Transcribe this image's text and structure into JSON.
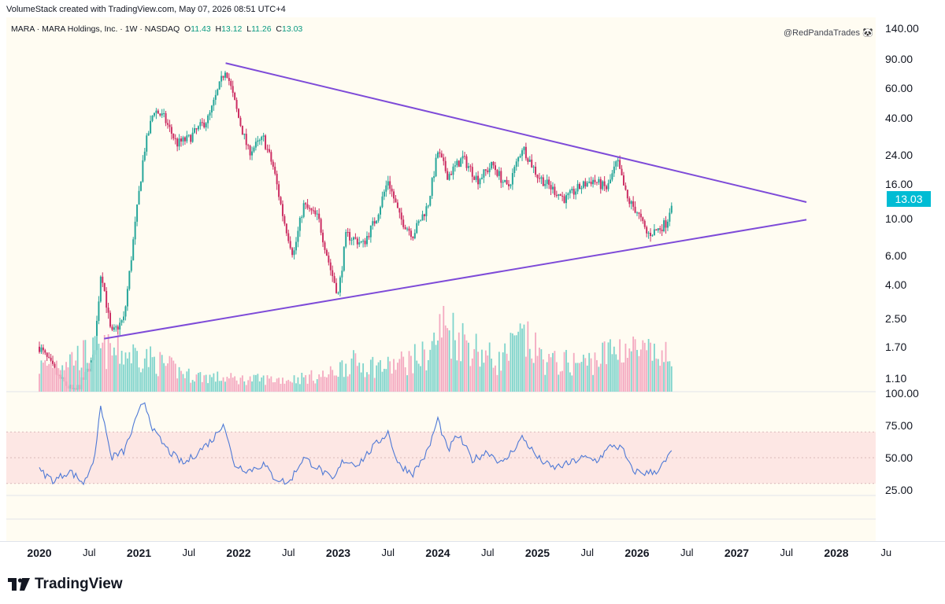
{
  "header": {
    "text": "VolumeStack created with TradingView.com, May 07, 2026 08:51 UTC+4"
  },
  "symbol": {
    "name": "MARA · MARA Holdings, Inc. · 1W · NASDAQ",
    "open_label": "O",
    "open": "11.43",
    "high_label": "H",
    "high": "13.12",
    "low_label": "L",
    "low": "11.26",
    "close_label": "C",
    "close": "13.03"
  },
  "watermark_user": "@RedPandaTrades 🐼",
  "brand": "TradingView",
  "colors": {
    "up": "#26a69a",
    "down": "#cc2e63",
    "trendline": "#7e4bd8",
    "volume_up": "#7fd4cc",
    "volume_down": "#f4a9c0",
    "rsi_line": "#4e79d6",
    "rsi_band": "#fde7e4",
    "last_price": "#00bcd4"
  },
  "chart_data": {
    "type": "candlestick",
    "symbol": "MARA",
    "interval": "1W",
    "price_scale": "log",
    "price_ticks": [
      "140.00",
      "90.00",
      "60.00",
      "40.00",
      "24.00",
      "16.00",
      "10.00",
      "6.00",
      "4.00",
      "2.50",
      "1.70",
      "1.10"
    ],
    "last_price": "13.03",
    "time_ticks": [
      {
        "label": "2020",
        "year": true
      },
      {
        "label": "Jul",
        "year": false
      },
      {
        "label": "2021",
        "year": true
      },
      {
        "label": "Jul",
        "year": false
      },
      {
        "label": "2022",
        "year": true
      },
      {
        "label": "Jul",
        "year": false
      },
      {
        "label": "2023",
        "year": true
      },
      {
        "label": "Jul",
        "year": false
      },
      {
        "label": "2024",
        "year": true
      },
      {
        "label": "Jul",
        "year": false
      },
      {
        "label": "2025",
        "year": true
      },
      {
        "label": "Jul",
        "year": false
      },
      {
        "label": "2026",
        "year": true
      },
      {
        "label": "Jul",
        "year": false
      },
      {
        "label": "2027",
        "year": true
      },
      {
        "label": "Jul",
        "year": false
      },
      {
        "label": "2028",
        "year": true
      },
      {
        "label": "Ju",
        "year": false
      }
    ],
    "price_anchors": [
      {
        "t": 2020.0,
        "p": 1.7
      },
      {
        "t": 2020.2,
        "p": 1.1
      },
      {
        "t": 2020.35,
        "p": 0.9
      },
      {
        "t": 2020.45,
        "p": 1.1
      },
      {
        "t": 2020.55,
        "p": 1.5
      },
      {
        "t": 2020.62,
        "p": 5.0
      },
      {
        "t": 2020.72,
        "p": 2.0
      },
      {
        "t": 2020.85,
        "p": 2.5
      },
      {
        "t": 2020.95,
        "p": 8.0
      },
      {
        "t": 2021.05,
        "p": 25.0
      },
      {
        "t": 2021.15,
        "p": 45.0
      },
      {
        "t": 2021.25,
        "p": 40.0
      },
      {
        "t": 2021.38,
        "p": 28.0
      },
      {
        "t": 2021.5,
        "p": 30.0
      },
      {
        "t": 2021.7,
        "p": 40.0
      },
      {
        "t": 2021.87,
        "p": 80.0
      },
      {
        "t": 2022.0,
        "p": 40.0
      },
      {
        "t": 2022.1,
        "p": 25.0
      },
      {
        "t": 2022.25,
        "p": 30.0
      },
      {
        "t": 2022.35,
        "p": 20.0
      },
      {
        "t": 2022.45,
        "p": 10.0
      },
      {
        "t": 2022.55,
        "p": 6.0
      },
      {
        "t": 2022.65,
        "p": 12.0
      },
      {
        "t": 2022.8,
        "p": 10.0
      },
      {
        "t": 2022.92,
        "p": 5.0
      },
      {
        "t": 2023.0,
        "p": 3.5
      },
      {
        "t": 2023.08,
        "p": 8.0
      },
      {
        "t": 2023.25,
        "p": 7.0
      },
      {
        "t": 2023.38,
        "p": 10.0
      },
      {
        "t": 2023.5,
        "p": 17.0
      },
      {
        "t": 2023.62,
        "p": 10.0
      },
      {
        "t": 2023.75,
        "p": 8.0
      },
      {
        "t": 2023.9,
        "p": 12.0
      },
      {
        "t": 2024.0,
        "p": 25.0
      },
      {
        "t": 2024.1,
        "p": 18.0
      },
      {
        "t": 2024.25,
        "p": 23.0
      },
      {
        "t": 2024.4,
        "p": 17.0
      },
      {
        "t": 2024.55,
        "p": 21.0
      },
      {
        "t": 2024.7,
        "p": 15.0
      },
      {
        "t": 2024.85,
        "p": 27.0
      },
      {
        "t": 2025.0,
        "p": 18.0
      },
      {
        "t": 2025.15,
        "p": 15.0
      },
      {
        "t": 2025.28,
        "p": 13.0
      },
      {
        "t": 2025.4,
        "p": 15.0
      },
      {
        "t": 2025.55,
        "p": 17.0
      },
      {
        "t": 2025.7,
        "p": 15.0
      },
      {
        "t": 2025.8,
        "p": 22.0
      },
      {
        "t": 2025.9,
        "p": 13.0
      },
      {
        "t": 2026.0,
        "p": 11.0
      },
      {
        "t": 2026.1,
        "p": 8.0
      },
      {
        "t": 2026.2,
        "p": 8.5
      },
      {
        "t": 2026.3,
        "p": 9.5
      },
      {
        "t": 2026.35,
        "p": 13.03
      }
    ],
    "trendlines": [
      {
        "name": "upper",
        "from": {
          "t": 2021.87,
          "p": 85.0
        },
        "to": {
          "t": 2027.7,
          "p": 12.5
        }
      },
      {
        "name": "lower",
        "from": {
          "t": 2020.65,
          "p": 1.9
        },
        "to": {
          "t": 2027.7,
          "p": 9.8
        }
      }
    ],
    "rsi": {
      "ticks": [
        "100.00",
        "75.00",
        "50.00",
        "25.00"
      ],
      "overbought": 70,
      "oversold": 30,
      "anchors": [
        {
          "t": 2020.0,
          "v": 40
        },
        {
          "t": 2020.15,
          "v": 32
        },
        {
          "t": 2020.3,
          "v": 40
        },
        {
          "t": 2020.45,
          "v": 30
        },
        {
          "t": 2020.55,
          "v": 50
        },
        {
          "t": 2020.62,
          "v": 90
        },
        {
          "t": 2020.72,
          "v": 50
        },
        {
          "t": 2020.85,
          "v": 55
        },
        {
          "t": 2020.95,
          "v": 75
        },
        {
          "t": 2021.05,
          "v": 95
        },
        {
          "t": 2021.15,
          "v": 70
        },
        {
          "t": 2021.3,
          "v": 55
        },
        {
          "t": 2021.45,
          "v": 45
        },
        {
          "t": 2021.6,
          "v": 55
        },
        {
          "t": 2021.75,
          "v": 65
        },
        {
          "t": 2021.85,
          "v": 78
        },
        {
          "t": 2021.95,
          "v": 45
        },
        {
          "t": 2022.1,
          "v": 40
        },
        {
          "t": 2022.25,
          "v": 45
        },
        {
          "t": 2022.35,
          "v": 35
        },
        {
          "t": 2022.5,
          "v": 30
        },
        {
          "t": 2022.65,
          "v": 50
        },
        {
          "t": 2022.8,
          "v": 42
        },
        {
          "t": 2022.95,
          "v": 32
        },
        {
          "t": 2023.05,
          "v": 48
        },
        {
          "t": 2023.2,
          "v": 45
        },
        {
          "t": 2023.35,
          "v": 58
        },
        {
          "t": 2023.5,
          "v": 70
        },
        {
          "t": 2023.6,
          "v": 45
        },
        {
          "t": 2023.75,
          "v": 38
        },
        {
          "t": 2023.9,
          "v": 55
        },
        {
          "t": 2024.0,
          "v": 80
        },
        {
          "t": 2024.1,
          "v": 55
        },
        {
          "t": 2024.2,
          "v": 68
        },
        {
          "t": 2024.35,
          "v": 48
        },
        {
          "t": 2024.5,
          "v": 55
        },
        {
          "t": 2024.65,
          "v": 45
        },
        {
          "t": 2024.85,
          "v": 66
        },
        {
          "t": 2025.0,
          "v": 50
        },
        {
          "t": 2025.15,
          "v": 42
        },
        {
          "t": 2025.3,
          "v": 45
        },
        {
          "t": 2025.45,
          "v": 50
        },
        {
          "t": 2025.6,
          "v": 48
        },
        {
          "t": 2025.75,
          "v": 60
        },
        {
          "t": 2025.85,
          "v": 57
        },
        {
          "t": 2025.95,
          "v": 40
        },
        {
          "t": 2026.1,
          "v": 38
        },
        {
          "t": 2026.2,
          "v": 40
        },
        {
          "t": 2026.3,
          "v": 48
        },
        {
          "t": 2026.35,
          "v": 57
        }
      ]
    },
    "volume": {
      "anchors": [
        {
          "t": 2020.0,
          "v": 0.3
        },
        {
          "t": 2020.6,
          "v": 0.5
        },
        {
          "t": 2021.0,
          "v": 0.45
        },
        {
          "t": 2021.5,
          "v": 0.2
        },
        {
          "t": 2022.0,
          "v": 0.15
        },
        {
          "t": 2022.5,
          "v": 0.15
        },
        {
          "t": 2022.9,
          "v": 0.2
        },
        {
          "t": 2023.1,
          "v": 0.35
        },
        {
          "t": 2023.5,
          "v": 0.3
        },
        {
          "t": 2023.9,
          "v": 0.45
        },
        {
          "t": 2024.05,
          "v": 0.8
        },
        {
          "t": 2024.3,
          "v": 0.6
        },
        {
          "t": 2024.6,
          "v": 0.35
        },
        {
          "t": 2024.85,
          "v": 0.65
        },
        {
          "t": 2025.1,
          "v": 0.35
        },
        {
          "t": 2025.5,
          "v": 0.35
        },
        {
          "t": 2025.85,
          "v": 0.55
        },
        {
          "t": 2026.1,
          "v": 0.45
        },
        {
          "t": 2026.35,
          "v": 0.4
        }
      ]
    }
  }
}
